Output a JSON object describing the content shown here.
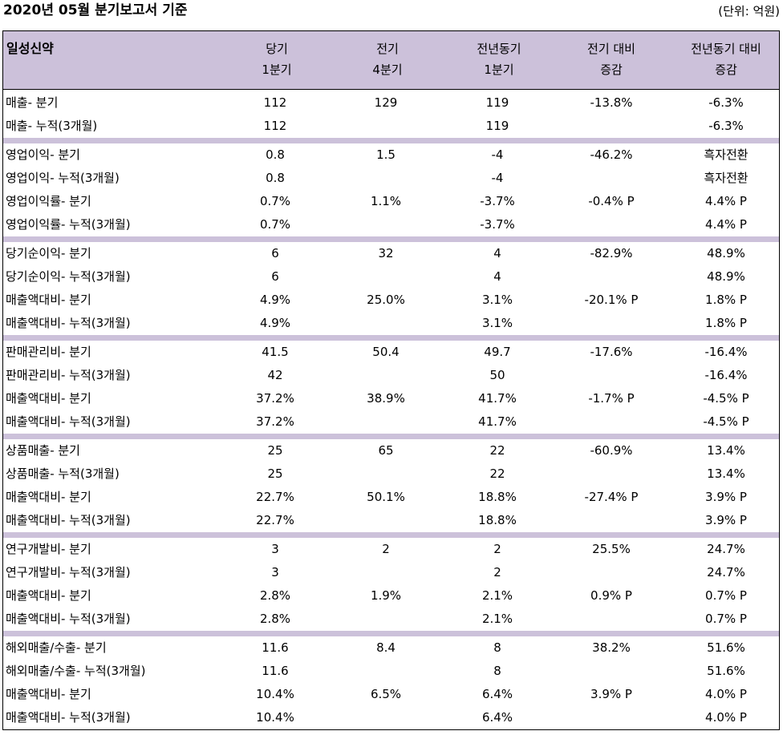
{
  "title": "2020년 05월 분기보고서 기준",
  "unit": "(단위: 억원)",
  "header": {
    "company": "일성신약",
    "cols": [
      "당기\n1분기",
      "전기\n4분기",
      "전년동기\n1분기",
      "전기 대비\n증감",
      "전년동기 대비\n증감"
    ]
  },
  "groups": [
    [
      [
        "매출- 분기",
        "112",
        "129",
        "119",
        "-13.8%",
        "-6.3%"
      ],
      [
        "매출- 누적(3개월)",
        "112",
        "",
        "119",
        "",
        "-6.3%"
      ]
    ],
    [
      [
        "영업이익- 분기",
        "0.8",
        "1.5",
        "-4",
        "-46.2%",
        "흑자전환"
      ],
      [
        "영업이익- 누적(3개월)",
        "0.8",
        "",
        "-4",
        "",
        "흑자전환"
      ],
      [
        "영업이익률- 분기",
        "0.7%",
        "1.1%",
        "-3.7%",
        "-0.4% P",
        "4.4% P"
      ],
      [
        "영업이익률- 누적(3개월)",
        "0.7%",
        "",
        "-3.7%",
        "",
        "4.4% P"
      ]
    ],
    [
      [
        "당기순이익- 분기",
        "6",
        "32",
        "4",
        "-82.9%",
        "48.9%"
      ],
      [
        "당기순이익- 누적(3개월)",
        "6",
        "",
        "4",
        "",
        "48.9%"
      ],
      [
        "매출액대비- 분기",
        "4.9%",
        "25.0%",
        "3.1%",
        "-20.1% P",
        "1.8% P"
      ],
      [
        "매출액대비- 누적(3개월)",
        "4.9%",
        "",
        "3.1%",
        "",
        "1.8% P"
      ]
    ],
    [
      [
        "판매관리비- 분기",
        "41.5",
        "50.4",
        "49.7",
        "-17.6%",
        "-16.4%"
      ],
      [
        "판매관리비- 누적(3개월)",
        "42",
        "",
        "50",
        "",
        "-16.4%"
      ],
      [
        "매출액대비- 분기",
        "37.2%",
        "38.9%",
        "41.7%",
        "-1.7% P",
        "-4.5% P"
      ],
      [
        "매출액대비- 누적(3개월)",
        "37.2%",
        "",
        "41.7%",
        "",
        "-4.5% P"
      ]
    ],
    [
      [
        "상품매출- 분기",
        "25",
        "65",
        "22",
        "-60.9%",
        "13.4%"
      ],
      [
        "상품매출- 누적(3개월)",
        "25",
        "",
        "22",
        "",
        "13.4%"
      ],
      [
        "매출액대비- 분기",
        "22.7%",
        "50.1%",
        "18.8%",
        "-27.4% P",
        "3.9% P"
      ],
      [
        "매출액대비- 누적(3개월)",
        "22.7%",
        "",
        "18.8%",
        "",
        "3.9% P"
      ]
    ],
    [
      [
        "연구개발비- 분기",
        "3",
        "2",
        "2",
        "25.5%",
        "24.7%"
      ],
      [
        "연구개발비- 누적(3개월)",
        "3",
        "",
        "2",
        "",
        "24.7%"
      ],
      [
        "매출액대비- 분기",
        "2.8%",
        "1.9%",
        "2.1%",
        "0.9% P",
        "0.7% P"
      ],
      [
        "매출액대비- 누적(3개월)",
        "2.8%",
        "",
        "2.1%",
        "",
        "0.7% P"
      ]
    ],
    [
      [
        "해외매출/수출- 분기",
        "11.6",
        "8.4",
        "8",
        "38.2%",
        "51.6%"
      ],
      [
        "해외매출/수출- 누적(3개월)",
        "11.6",
        "",
        "8",
        "",
        "51.6%"
      ],
      [
        "매출액대비- 분기",
        "10.4%",
        "6.5%",
        "6.4%",
        "3.9% P",
        "4.0% P"
      ],
      [
        "매출액대비- 누적(3개월)",
        "10.4%",
        "",
        "6.4%",
        "",
        "4.0% P"
      ]
    ]
  ]
}
